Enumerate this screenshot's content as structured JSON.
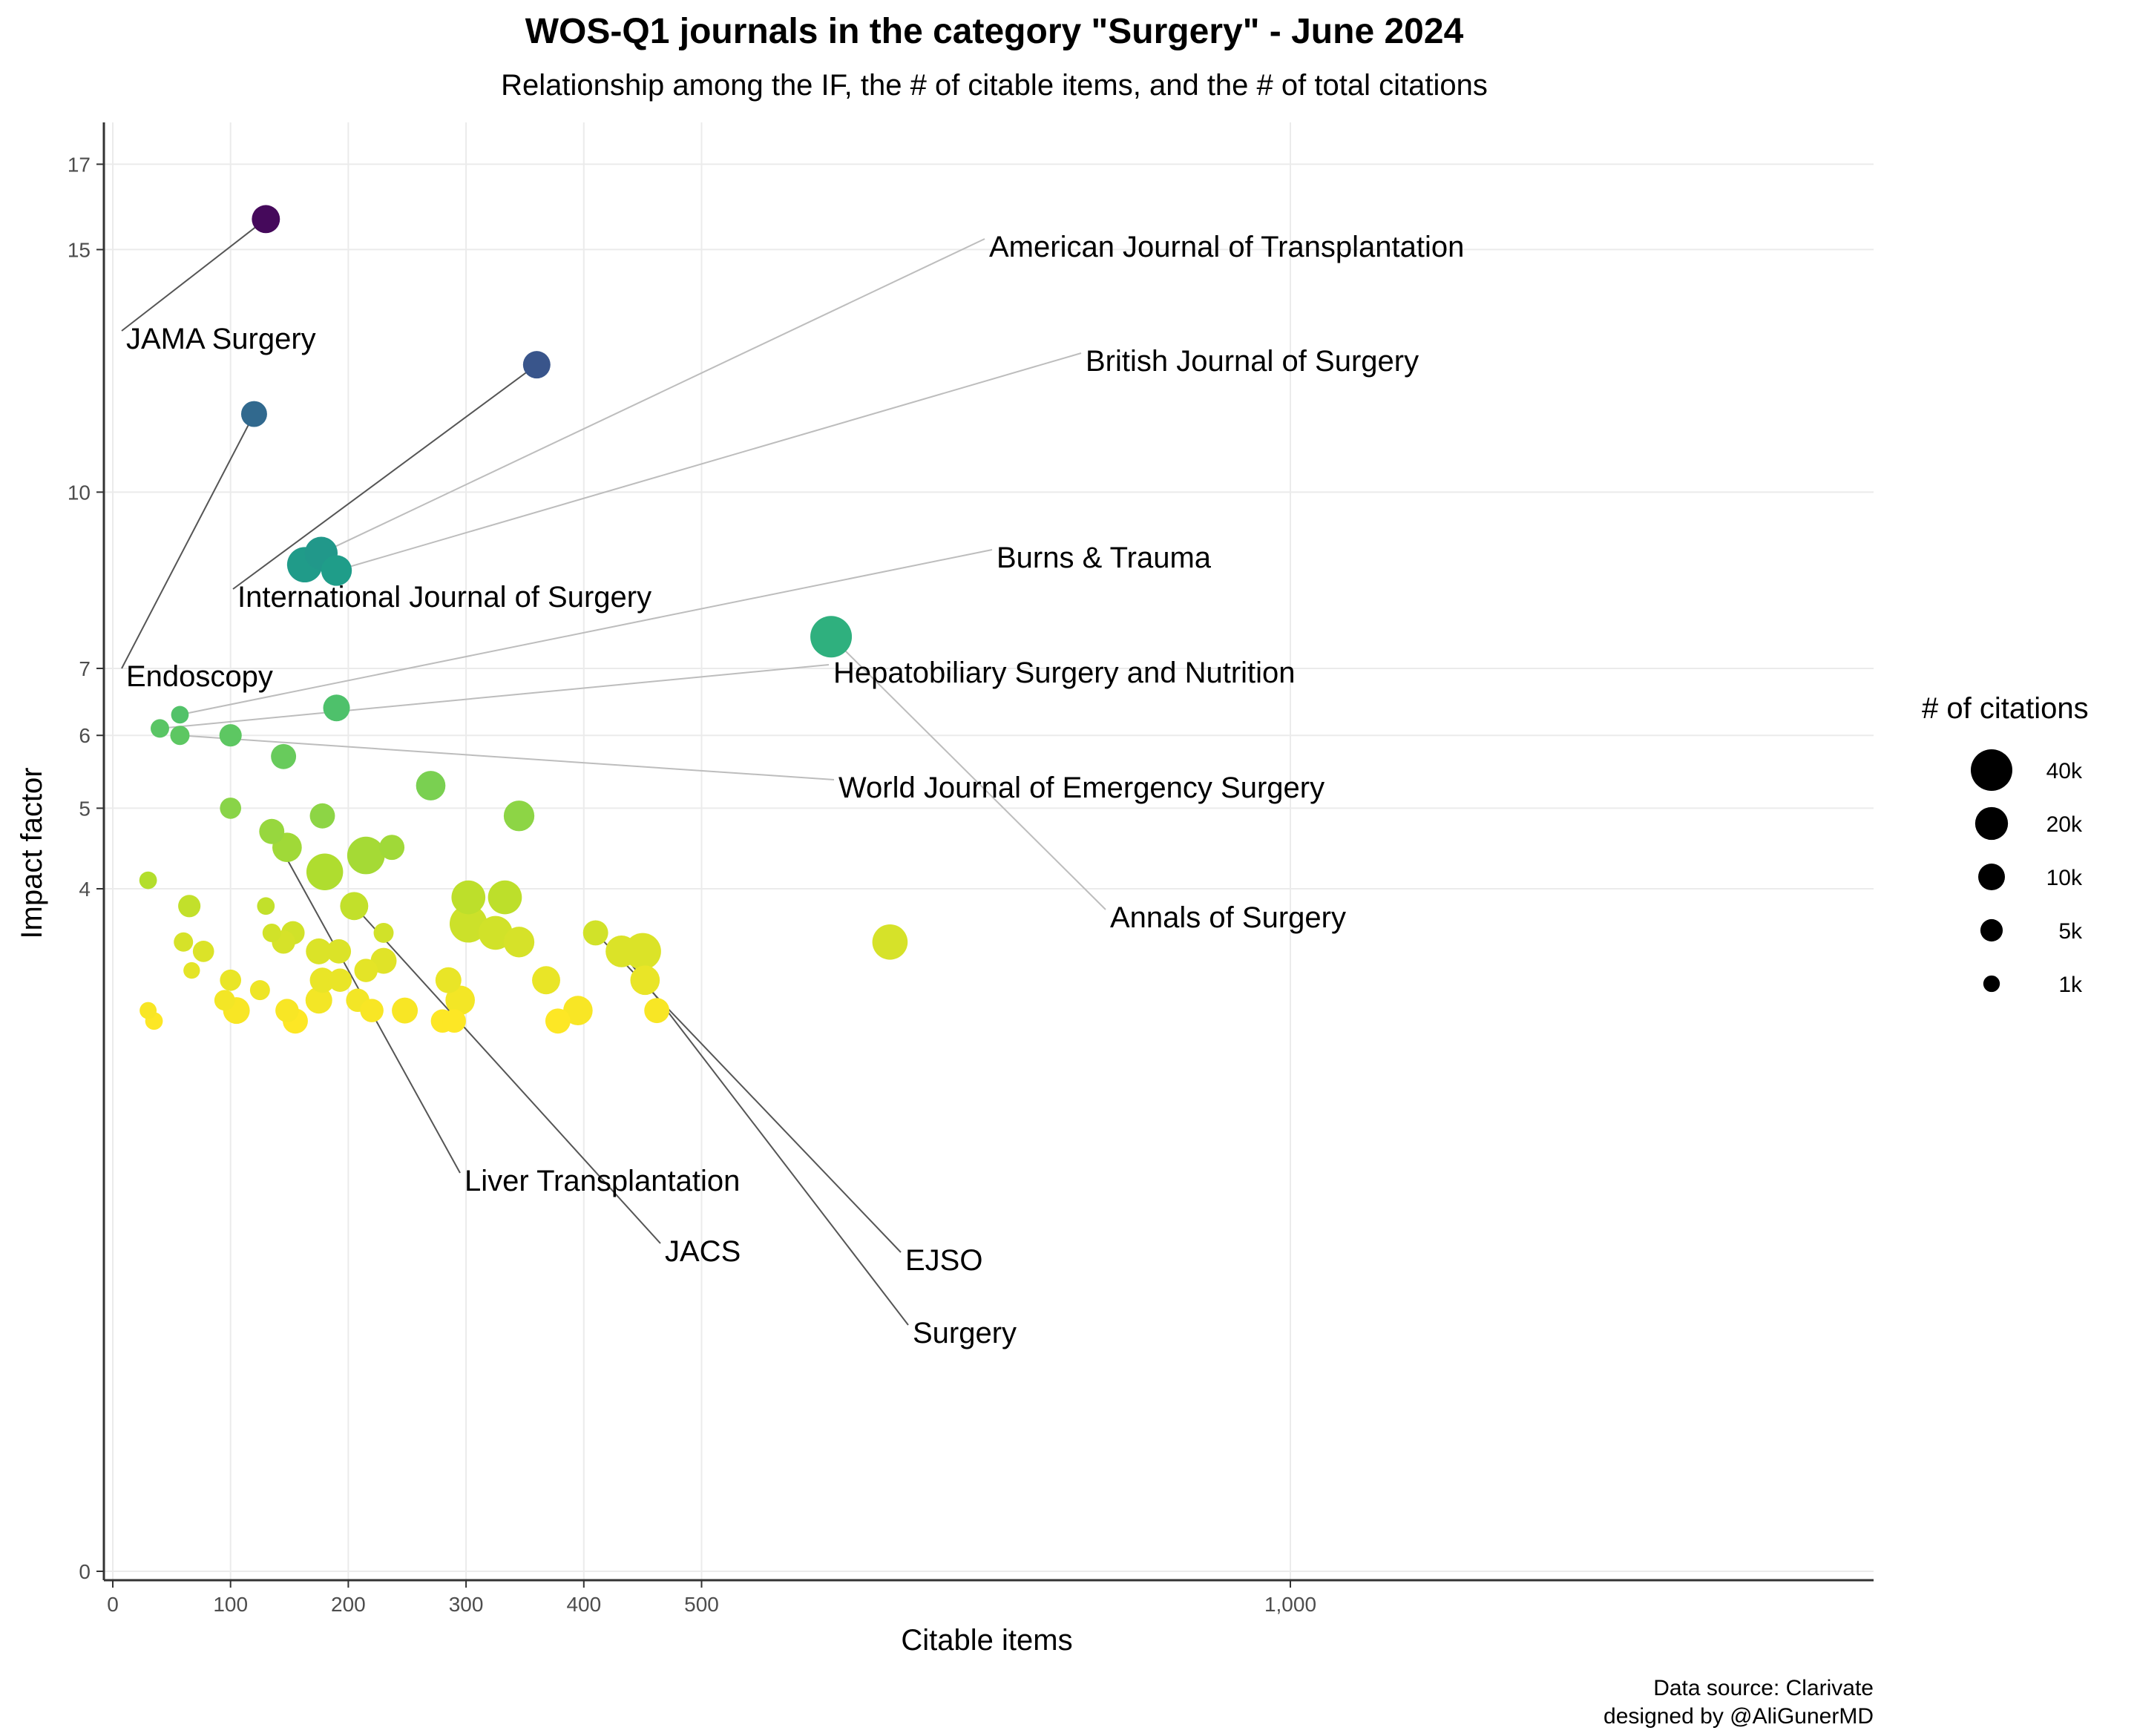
{
  "chart_data": {
    "type": "scatter",
    "title": "WOS-Q1 journals in the category \"Surgery\" - June 2024",
    "subtitle": "Relationship among the IF, the # of citable items, and the # of total citations",
    "xlabel": "Citable items",
    "ylabel": "Impact factor",
    "x_ticks": [
      0,
      100,
      200,
      300,
      400,
      500,
      1000
    ],
    "x_tick_labels": [
      "0",
      "100",
      "200",
      "300",
      "400",
      "500",
      "1,000"
    ],
    "y_ticks": [
      0,
      4,
      5,
      6,
      7,
      10,
      15,
      17
    ],
    "y_scale": "sqrt",
    "xlim": [
      -10,
      1500
    ],
    "ylim": [
      0,
      18
    ],
    "grid": true,
    "legend": {
      "title": "# of citations",
      "position": "right",
      "entries": [
        {
          "label": "40k",
          "value": 40000
        },
        {
          "label": "20k",
          "value": 20000
        },
        {
          "label": "10k",
          "value": 10000
        },
        {
          "label": "5k",
          "value": 5000
        },
        {
          "label": "1k",
          "value": 1000
        }
      ]
    },
    "color_scale": "viridis (reversed): higher impact factor darker",
    "points": [
      {
        "x": 130,
        "y": 15.7,
        "size": 12000
      },
      {
        "x": 360,
        "y": 12.5,
        "size": 11000
      },
      {
        "x": 120,
        "y": 11.5,
        "size": 9000
      },
      {
        "x": 177,
        "y": 8.9,
        "size": 20000
      },
      {
        "x": 163,
        "y": 8.7,
        "size": 25000
      },
      {
        "x": 190,
        "y": 8.6,
        "size": 16000
      },
      {
        "x": 610,
        "y": 7.5,
        "size": 40000
      },
      {
        "x": 190,
        "y": 6.4,
        "size": 10000
      },
      {
        "x": 57,
        "y": 6.3,
        "size": 1500
      },
      {
        "x": 40,
        "y": 6.1,
        "size": 2000
      },
      {
        "x": 57,
        "y": 6.0,
        "size": 2500
      },
      {
        "x": 100,
        "y": 6.0,
        "size": 5000
      },
      {
        "x": 145,
        "y": 5.7,
        "size": 8000
      },
      {
        "x": 270,
        "y": 5.3,
        "size": 14000
      },
      {
        "x": 100,
        "y": 5.0,
        "size": 4000
      },
      {
        "x": 178,
        "y": 4.9,
        "size": 8000
      },
      {
        "x": 345,
        "y": 4.9,
        "size": 16000
      },
      {
        "x": 135,
        "y": 4.7,
        "size": 8000
      },
      {
        "x": 148,
        "y": 4.5,
        "size": 14000
      },
      {
        "x": 215,
        "y": 4.4,
        "size": 30000
      },
      {
        "x": 237,
        "y": 4.5,
        "size": 8000
      },
      {
        "x": 180,
        "y": 4.2,
        "size": 28000
      },
      {
        "x": 30,
        "y": 4.1,
        "size": 1500
      },
      {
        "x": 65,
        "y": 3.8,
        "size": 5000
      },
      {
        "x": 130,
        "y": 3.8,
        "size": 1500
      },
      {
        "x": 205,
        "y": 3.8,
        "size": 12000
      },
      {
        "x": 302,
        "y": 3.9,
        "size": 22000
      },
      {
        "x": 333,
        "y": 3.9,
        "size": 22000
      },
      {
        "x": 302,
        "y": 3.6,
        "size": 30000
      },
      {
        "x": 325,
        "y": 3.5,
        "size": 22000
      },
      {
        "x": 345,
        "y": 3.4,
        "size": 16000
      },
      {
        "x": 135,
        "y": 3.5,
        "size": 2000
      },
      {
        "x": 153,
        "y": 3.5,
        "size": 6000
      },
      {
        "x": 145,
        "y": 3.4,
        "size": 6000
      },
      {
        "x": 230,
        "y": 3.5,
        "size": 3000
      },
      {
        "x": 410,
        "y": 3.5,
        "size": 8000
      },
      {
        "x": 60,
        "y": 3.4,
        "size": 2500
      },
      {
        "x": 77,
        "y": 3.3,
        "size": 4000
      },
      {
        "x": 175,
        "y": 3.3,
        "size": 9000
      },
      {
        "x": 192,
        "y": 3.3,
        "size": 7000
      },
      {
        "x": 230,
        "y": 3.2,
        "size": 9000
      },
      {
        "x": 432,
        "y": 3.3,
        "size": 18000
      },
      {
        "x": 450,
        "y": 3.3,
        "size": 28000
      },
      {
        "x": 660,
        "y": 3.4,
        "size": 25000
      },
      {
        "x": 67,
        "y": 3.1,
        "size": 1000
      },
      {
        "x": 215,
        "y": 3.1,
        "size": 6000
      },
      {
        "x": 100,
        "y": 3.0,
        "size": 4000
      },
      {
        "x": 178,
        "y": 3.0,
        "size": 8000
      },
      {
        "x": 193,
        "y": 3.0,
        "size": 6000
      },
      {
        "x": 285,
        "y": 3.0,
        "size": 9000
      },
      {
        "x": 368,
        "y": 3.0,
        "size": 12000
      },
      {
        "x": 452,
        "y": 3.0,
        "size": 14000
      },
      {
        "x": 125,
        "y": 2.9,
        "size": 3000
      },
      {
        "x": 95,
        "y": 2.8,
        "size": 3500
      },
      {
        "x": 105,
        "y": 2.7,
        "size": 10000
      },
      {
        "x": 175,
        "y": 2.8,
        "size": 10000
      },
      {
        "x": 208,
        "y": 2.8,
        "size": 6000
      },
      {
        "x": 295,
        "y": 2.8,
        "size": 14000
      },
      {
        "x": 30,
        "y": 2.7,
        "size": 1200
      },
      {
        "x": 35,
        "y": 2.6,
        "size": 1500
      },
      {
        "x": 148,
        "y": 2.7,
        "size": 6000
      },
      {
        "x": 155,
        "y": 2.6,
        "size": 8000
      },
      {
        "x": 220,
        "y": 2.7,
        "size": 6000
      },
      {
        "x": 248,
        "y": 2.7,
        "size": 9000
      },
      {
        "x": 280,
        "y": 2.6,
        "size": 6000
      },
      {
        "x": 290,
        "y": 2.6,
        "size": 6000
      },
      {
        "x": 378,
        "y": 2.6,
        "size": 8000
      },
      {
        "x": 395,
        "y": 2.7,
        "size": 14000
      },
      {
        "x": 462,
        "y": 2.7,
        "size": 8000
      }
    ],
    "annotations": [
      {
        "text": "JAMA Surgery",
        "x": 130,
        "y": 15.7
      },
      {
        "text": "International Journal of Surgery",
        "x": 360,
        "y": 12.5
      },
      {
        "text": "Endoscopy",
        "x": 120,
        "y": 11.5
      },
      {
        "text": "American Journal of Transplantation",
        "x": 177,
        "y": 8.9
      },
      {
        "text": "British Journal of Surgery",
        "x": 190,
        "y": 8.6
      },
      {
        "text": "Burns & Trauma",
        "x": 57,
        "y": 6.3
      },
      {
        "text": "Hepatobiliary Surgery and Nutrition",
        "x": 40,
        "y": 6.1
      },
      {
        "text": "World Journal of Emergency Surgery",
        "x": 57,
        "y": 6.0
      },
      {
        "text": "Annals of Surgery",
        "x": 610,
        "y": 7.5
      },
      {
        "text": "Liver Transplantation",
        "x": 135,
        "y": 4.7
      },
      {
        "text": "JACS",
        "x": 205,
        "y": 3.8
      },
      {
        "text": "EJSO",
        "x": 410,
        "y": 3.5
      },
      {
        "text": "Surgery",
        "x": 432,
        "y": 3.3
      }
    ],
    "caption": [
      "Data source: Clarivate",
      "designed by @AliGunerMD"
    ]
  }
}
